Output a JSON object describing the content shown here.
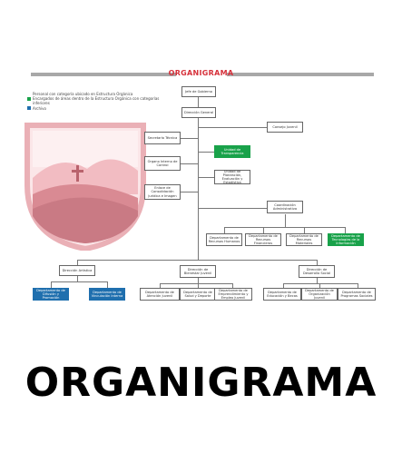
{
  "header": {
    "title": "ORGANIGRAMA"
  },
  "legend": {
    "items": [
      {
        "text": "Personal con categoría ubicado en Estructura Orgánica",
        "color": "#ffffff"
      },
      {
        "text": "Encargados de áreas dentro de la Estructura Orgánica con categorías inferiores",
        "color": "#19a24a"
      },
      {
        "text": "Archivo",
        "color": "#1f6fae"
      }
    ]
  },
  "org": {
    "jefe": "Jefe de Gobierno",
    "director_general": "Dirección General",
    "consejo": "Consejo Juvenil",
    "secretaria": "Secretaría Técnica",
    "transparencia": "Unidad de Transparencia",
    "control": "Órgano Interno de Control",
    "planeacion": "Unidad de Planeación, Evaluación y Estadística",
    "consolidacion": "Enlace de Consolidación Jurídica e Imagen",
    "coord_admin": "Coordinación Administrativa",
    "dept_recursos_humanos": "Departamento de Recursos Humanos",
    "dept_recursos_financieros": "Departamento de Recursos Financieros",
    "dept_recursos_materiales": "Departamento de Recursos Materiales",
    "dept_tecnologias": "Departamento de Tecnologías de la Información",
    "dir_arte": "Dirección Artística",
    "dir_bienestar": "Dirección de Bienestar Juvenil",
    "dir_desarrollo": "Dirección de Desarrollo Social",
    "dept_difusion": "Departamento de Difusión y Promoción",
    "dept_vinculacion": "Departamento de Vinculación Interna",
    "dept_atencion": "Departamento de Atención Juvenil",
    "dept_salud": "Departamento de Salud y Deporte",
    "dept_emprendimiento": "Departamento de Emprendimiento y Empleo Juvenil",
    "dept_educacion": "Departamento de Educación y Becas",
    "dept_organizacion": "Departamento de Organización Juvenil",
    "dept_programas": "Departamento de Programas Sociales"
  },
  "footer": {
    "title": "ORGANIGRAMA"
  },
  "colors": {
    "accent": "#d6303a",
    "green": "#19a24a",
    "blue": "#1f6fae",
    "crest": "#e9a6ad"
  }
}
